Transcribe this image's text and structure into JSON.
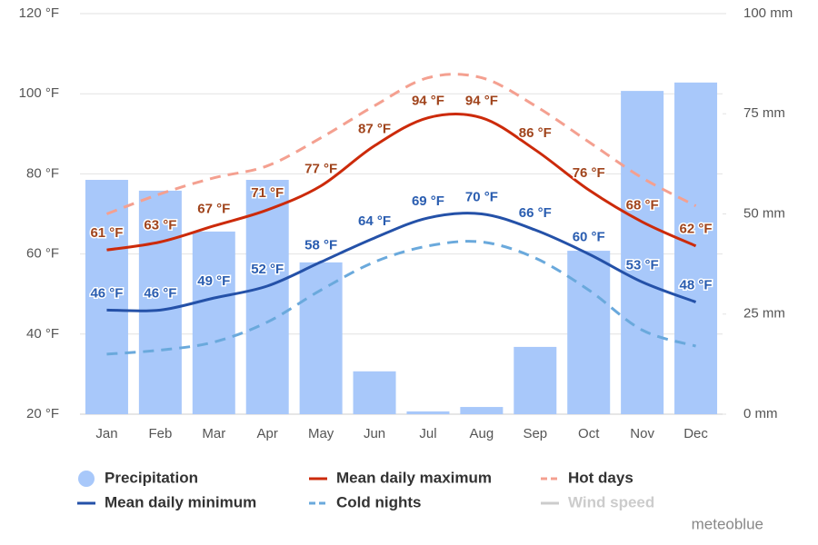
{
  "chart_data": {
    "type": "combo",
    "categories": [
      "Jan",
      "Feb",
      "Mar",
      "Apr",
      "May",
      "Jun",
      "Jul",
      "Aug",
      "Sep",
      "Oct",
      "Nov",
      "Dec"
    ],
    "ylim": [
      20,
      120
    ],
    "yticks": [
      {
        "value": 20,
        "label": "20 °F"
      },
      {
        "value": 40,
        "label": "40 °F"
      },
      {
        "value": 60,
        "label": "60 °F"
      },
      {
        "value": 80,
        "label": "80 °F"
      },
      {
        "value": 100,
        "label": "100 °F"
      },
      {
        "value": 120,
        "label": "120 °F"
      }
    ],
    "y2lim": [
      0,
      100
    ],
    "y2ticks": [
      {
        "value": 0,
        "label": "0 mm"
      },
      {
        "value": 25,
        "label": "25 mm"
      },
      {
        "value": 50,
        "label": "50 mm"
      },
      {
        "value": 75,
        "label": "75 mm"
      },
      {
        "value": 100,
        "label": "100 mm"
      }
    ],
    "grid": true,
    "series": [
      {
        "name": "Precipitation",
        "type": "bar",
        "axis": "y2",
        "color": "#a8c8fa",
        "values": [
          58.5,
          55.8,
          45.6,
          58.5,
          37.9,
          10.7,
          0.7,
          1.8,
          16.8,
          40.8,
          80.7,
          82.8
        ]
      },
      {
        "name": "Mean daily maximum",
        "type": "line",
        "color": "#cc2a0a",
        "label_color": "#a0441c",
        "style": "solid",
        "values": [
          61,
          63,
          67,
          71,
          77,
          87,
          94,
          94,
          86,
          76,
          68,
          62
        ],
        "value_labels": [
          "61 °F",
          "63 °F",
          "67 °F",
          "71 °F",
          "77 °F",
          "87 °F",
          "94 °F",
          "94 °F",
          "86 °F",
          "76 °F",
          "68 °F",
          "62 °F"
        ]
      },
      {
        "name": "Hot days",
        "type": "line",
        "color": "#f4a090",
        "style": "dashed",
        "values": [
          70,
          75,
          79,
          82,
          89,
          97,
          104,
          104,
          97,
          88,
          79,
          72
        ]
      },
      {
        "name": "Mean daily minimum",
        "type": "line",
        "color": "#2451a8",
        "label_color": "#2a5db0",
        "style": "solid",
        "values": [
          46,
          46,
          49,
          52,
          58,
          64,
          69,
          70,
          66,
          60,
          53,
          48
        ],
        "value_labels": [
          "46 °F",
          "46 °F",
          "49 °F",
          "52 °F",
          "58 °F",
          "64 °F",
          "69 °F",
          "70 °F",
          "66 °F",
          "60 °F",
          "53 °F",
          "48 °F"
        ]
      },
      {
        "name": "Cold nights",
        "type": "line",
        "color": "#6aa9dc",
        "style": "dashed",
        "values": [
          35,
          36,
          38,
          43,
          51,
          58,
          62,
          63,
          59,
          51,
          41,
          37
        ]
      }
    ],
    "inactive_series": [
      {
        "name": "Wind speed",
        "color": "#cccccc"
      }
    ],
    "credit": "meteoblue"
  }
}
